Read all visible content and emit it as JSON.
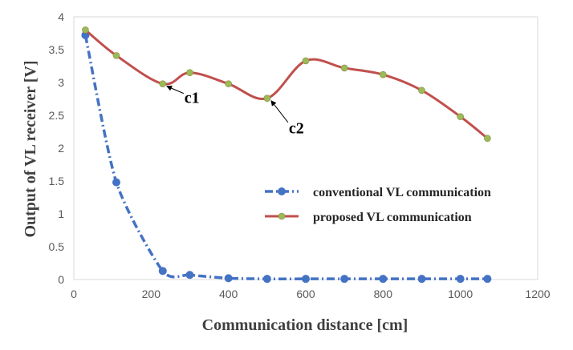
{
  "chart_data": {
    "type": "line",
    "xlabel": "Communication distance [cm]",
    "ylabel": "Output of VL receiver [V]",
    "xlim": [
      0,
      1200
    ],
    "ylim": [
      0,
      4
    ],
    "xticks": [
      0,
      200,
      400,
      600,
      800,
      1000,
      1200
    ],
    "yticks": [
      0,
      0.5,
      1,
      1.5,
      2,
      2.5,
      3,
      3.5,
      4
    ],
    "xtick_labels": [
      "0",
      "200",
      "400",
      "600",
      "800",
      "1000",
      "1200"
    ],
    "ytick_labels": [
      "0",
      "0.5",
      "1",
      "1.5",
      "2",
      "2.5",
      "3",
      "3.5",
      "4"
    ],
    "grid": false,
    "legend_position": "center-right",
    "series": [
      {
        "name": "conventional VL communication",
        "color": "#4472C4",
        "line_style": "dash-dot",
        "marker": "circle",
        "x": [
          30,
          110,
          230,
          300,
          400,
          500,
          600,
          700,
          800,
          900,
          1000,
          1070
        ],
        "y": [
          3.72,
          1.48,
          0.13,
          0.07,
          0.02,
          0.01,
          0.01,
          0.01,
          0.01,
          0.01,
          0.01,
          0.01
        ]
      },
      {
        "name": "proposed VL communication",
        "color": "#C0504D",
        "line_style": "solid",
        "marker": "circle",
        "marker_color": "#9BBB59",
        "x": [
          30,
          110,
          230,
          300,
          400,
          500,
          600,
          700,
          800,
          900,
          1000,
          1070
        ],
        "y": [
          3.8,
          3.41,
          2.98,
          3.15,
          2.98,
          2.76,
          3.33,
          3.22,
          3.12,
          2.88,
          2.48,
          2.15
        ]
      }
    ],
    "annotations": [
      {
        "text": "c1",
        "x": 230,
        "y": 2.98
      },
      {
        "text": "c2",
        "x": 500,
        "y": 2.76
      }
    ]
  }
}
